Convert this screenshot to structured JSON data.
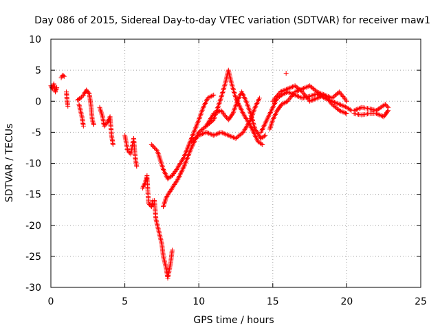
{
  "chart_data": {
    "type": "scatter",
    "title": "Day 086 of 2015, Sidereal Day-to-day VTEC variation (SDTVAR) for receiver maw1",
    "xlabel": "GPS time / hours",
    "ylabel": "SDTVAR / TECUs",
    "xlim": [
      0,
      25
    ],
    "ylim": [
      -30,
      10
    ],
    "xticks": [
      0,
      5,
      10,
      15,
      20,
      25
    ],
    "yticks": [
      -30,
      -25,
      -20,
      -15,
      -10,
      -5,
      0,
      5,
      10
    ],
    "grid": true,
    "marker": "+",
    "color": "#ff0000",
    "series_segments": [
      [
        [
          0.0,
          2.5
        ],
        [
          0.1,
          2.0
        ],
        [
          0.2,
          2.8
        ],
        [
          0.3,
          1.5
        ],
        [
          0.4,
          2.2
        ]
      ],
      [
        [
          0.7,
          3.8
        ],
        [
          0.8,
          4.2
        ],
        [
          0.9,
          4.0
        ]
      ],
      [
        [
          1.05,
          1.5
        ],
        [
          1.1,
          0.0
        ],
        [
          1.15,
          -0.8
        ]
      ],
      [
        [
          1.8,
          0.2
        ],
        [
          2.0,
          0.5
        ],
        [
          2.2,
          1.0
        ],
        [
          2.4,
          1.8
        ],
        [
          2.6,
          1.2
        ],
        [
          2.7,
          -0.5
        ],
        [
          2.8,
          -3.0
        ],
        [
          2.9,
          -3.8
        ]
      ],
      [
        [
          1.9,
          -0.5
        ],
        [
          2.1,
          -2.5
        ],
        [
          2.2,
          -4.0
        ]
      ],
      [
        [
          3.3,
          -1.0
        ],
        [
          3.5,
          -2.5
        ],
        [
          3.6,
          -4.0
        ],
        [
          3.8,
          -3.5
        ],
        [
          4.0,
          -2.5
        ],
        [
          4.1,
          -5.5
        ],
        [
          4.2,
          -7.0
        ]
      ],
      [
        [
          5.0,
          -5.5
        ],
        [
          5.2,
          -8.0
        ],
        [
          5.4,
          -8.5
        ],
        [
          5.6,
          -6.0
        ],
        [
          5.7,
          -9.0
        ],
        [
          5.8,
          -10.5
        ]
      ],
      [
        [
          6.2,
          -14.0
        ],
        [
          6.4,
          -13.0
        ],
        [
          6.5,
          -12.0
        ],
        [
          6.6,
          -16.5
        ],
        [
          6.8,
          -17.0
        ],
        [
          6.9,
          -16.0
        ]
      ],
      [
        [
          6.8,
          -7.0
        ],
        [
          7.0,
          -7.5
        ],
        [
          7.2,
          -8.0
        ],
        [
          7.4,
          -9.5
        ],
        [
          7.6,
          -11.0
        ],
        [
          7.9,
          -12.5
        ],
        [
          8.2,
          -12.0
        ],
        [
          8.5,
          -11.0
        ],
        [
          9.0,
          -9.0
        ],
        [
          9.5,
          -6.0
        ],
        [
          10.0,
          -3.0
        ],
        [
          10.3,
          -1.0
        ],
        [
          10.6,
          0.5
        ],
        [
          11.0,
          1.0
        ]
      ],
      [
        [
          7.0,
          -16.0
        ],
        [
          7.1,
          -19.0
        ],
        [
          7.3,
          -21.0
        ],
        [
          7.5,
          -23.0
        ],
        [
          7.6,
          -25.0
        ],
        [
          7.8,
          -27.0
        ],
        [
          7.9,
          -28.5
        ],
        [
          8.1,
          -26.0
        ],
        [
          8.2,
          -24.0
        ]
      ],
      [
        [
          7.6,
          -17.0
        ],
        [
          7.8,
          -15.5
        ],
        [
          8.2,
          -14.0
        ],
        [
          8.6,
          -12.5
        ],
        [
          9.0,
          -10.5
        ],
        [
          9.5,
          -7.5
        ],
        [
          10.0,
          -5.0
        ],
        [
          10.5,
          -4.0
        ],
        [
          11.0,
          -3.0
        ],
        [
          11.5,
          0.5
        ],
        [
          11.8,
          3.0
        ],
        [
          12.0,
          5.0
        ],
        [
          12.2,
          3.0
        ],
        [
          12.5,
          0.5
        ],
        [
          13.0,
          -2.0
        ],
        [
          13.5,
          -4.0
        ],
        [
          14.0,
          -6.5
        ],
        [
          14.3,
          -7.0
        ]
      ],
      [
        [
          9.5,
          -6.5
        ],
        [
          10.0,
          -5.5
        ],
        [
          10.5,
          -5.0
        ],
        [
          11.0,
          -5.5
        ],
        [
          11.5,
          -5.0
        ],
        [
          12.0,
          -5.5
        ],
        [
          12.5,
          -6.0
        ],
        [
          13.0,
          -5.0
        ],
        [
          13.5,
          -3.0
        ],
        [
          13.8,
          -1.0
        ],
        [
          14.1,
          0.5
        ]
      ],
      [
        [
          10.5,
          -4.0
        ],
        [
          11.0,
          -2.0
        ],
        [
          11.5,
          -1.5
        ],
        [
          12.0,
          -3.0
        ],
        [
          12.3,
          -2.0
        ],
        [
          12.6,
          0.0
        ],
        [
          12.9,
          1.5
        ],
        [
          13.2,
          0.0
        ],
        [
          13.5,
          -2.0
        ],
        [
          13.8,
          -4.5
        ],
        [
          14.2,
          -6.0
        ],
        [
          14.5,
          -5.5
        ]
      ],
      [
        [
          14.2,
          -5.0
        ],
        [
          14.5,
          -3.5
        ],
        [
          14.8,
          -2.0
        ],
        [
          15.0,
          -1.0
        ],
        [
          15.3,
          0.5
        ],
        [
          15.6,
          1.0
        ],
        [
          16.0,
          1.5
        ],
        [
          16.5,
          1.0
        ],
        [
          17.0,
          0.5
        ],
        [
          17.5,
          0.8
        ],
        [
          18.0,
          1.2
        ],
        [
          18.5,
          0.5
        ],
        [
          19.0,
          0.0
        ],
        [
          19.5,
          -0.5
        ],
        [
          20.0,
          -1.0
        ],
        [
          20.3,
          -1.5
        ]
      ],
      [
        [
          14.8,
          -4.5
        ],
        [
          15.0,
          -3.0
        ],
        [
          15.3,
          -1.5
        ],
        [
          15.6,
          -0.5
        ],
        [
          16.0,
          0.0
        ],
        [
          16.5,
          1.5
        ],
        [
          17.0,
          2.0
        ],
        [
          17.5,
          2.5
        ],
        [
          18.0,
          1.5
        ],
        [
          18.5,
          1.0
        ],
        [
          19.0,
          0.5
        ],
        [
          19.5,
          1.5
        ],
        [
          20.0,
          0.0
        ]
      ],
      [
        [
          15.0,
          0.0
        ],
        [
          15.5,
          1.5
        ],
        [
          16.0,
          2.0
        ],
        [
          16.5,
          2.5
        ],
        [
          17.0,
          1.5
        ],
        [
          17.5,
          0.0
        ],
        [
          18.0,
          0.5
        ],
        [
          18.5,
          1.0
        ],
        [
          19.0,
          -0.5
        ],
        [
          19.5,
          -1.5
        ],
        [
          20.0,
          -2.0
        ]
      ],
      [
        [
          20.5,
          -1.5
        ],
        [
          21.0,
          -1.0
        ],
        [
          21.5,
          -1.2
        ],
        [
          22.0,
          -1.5
        ],
        [
          22.3,
          -1.0
        ],
        [
          22.6,
          -0.5
        ],
        [
          22.8,
          -1.0
        ]
      ],
      [
        [
          20.5,
          -2.0
        ],
        [
          21.0,
          -2.2
        ],
        [
          21.5,
          -2.0
        ],
        [
          22.0,
          -2.0
        ],
        [
          22.5,
          -2.5
        ],
        [
          22.8,
          -1.5
        ]
      ],
      [
        [
          15.9,
          4.5
        ]
      ]
    ]
  }
}
